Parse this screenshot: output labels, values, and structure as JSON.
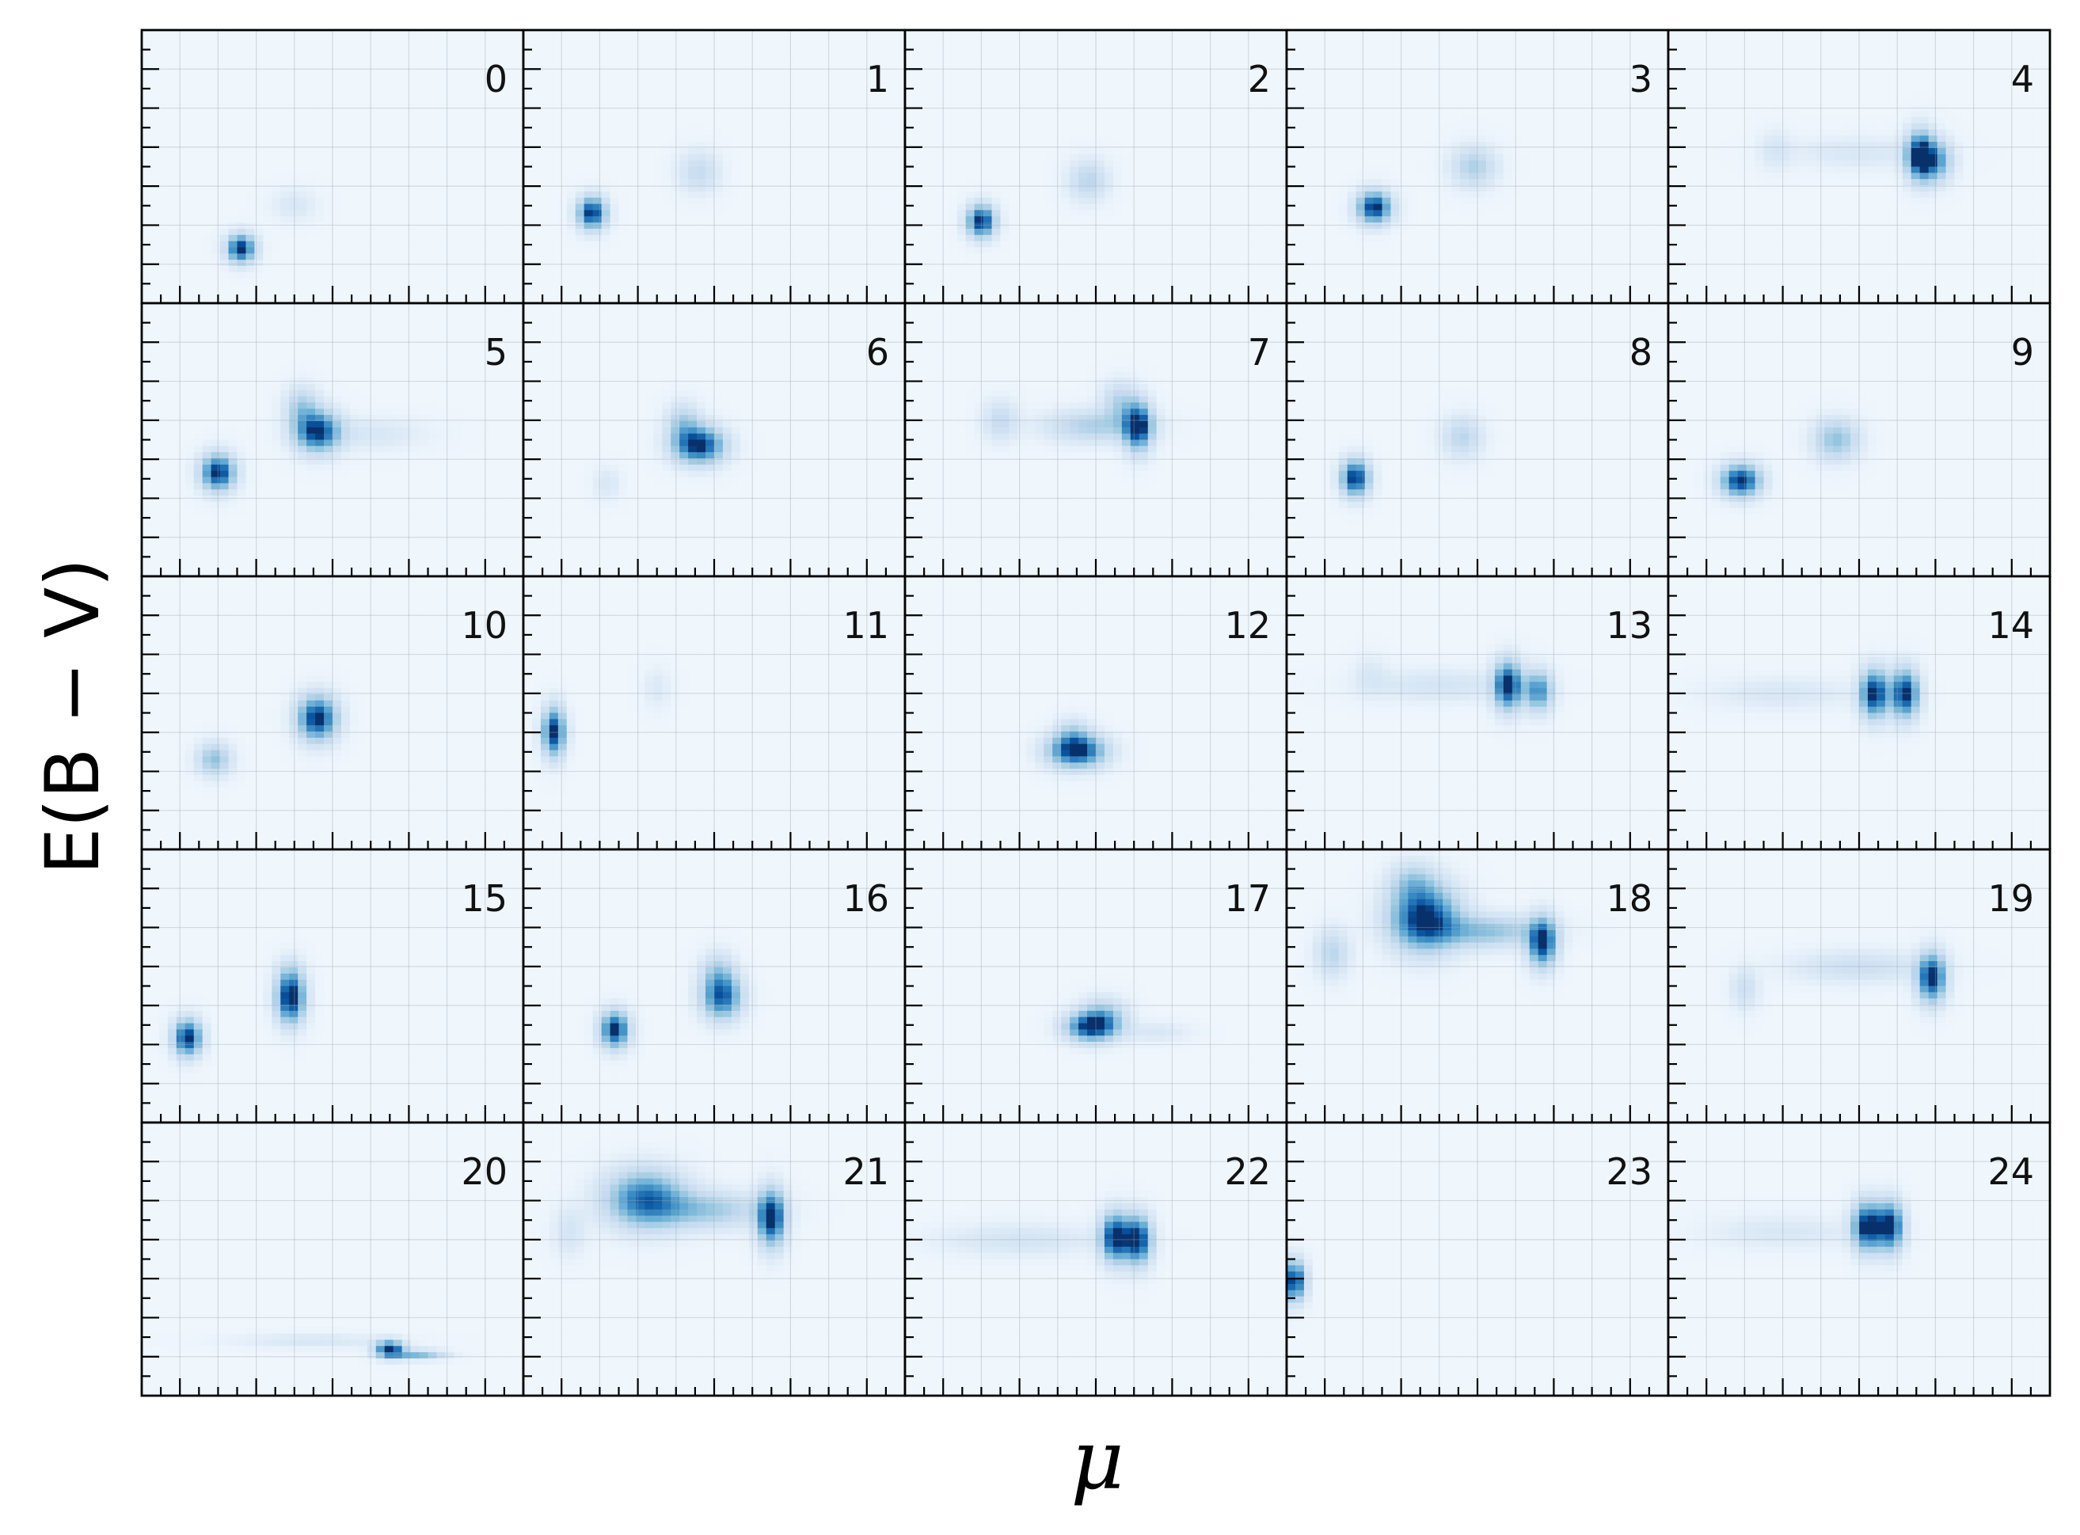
{
  "chart_data": {
    "type": "heatmap",
    "layout": "5x5 grid of panels",
    "xlabel": "μ",
    "ylabel": "E(B − V)",
    "colormap": "Blues",
    "grid": true,
    "panels": [
      {
        "label": "0",
        "blobs": [
          {
            "x": 0.26,
            "y": 0.2,
            "sx": 0.025,
            "sy": 0.035,
            "w": 1.0
          },
          {
            "x": 0.4,
            "y": 0.36,
            "sx": 0.04,
            "sy": 0.04,
            "w": 0.12
          }
        ]
      },
      {
        "label": "1",
        "blobs": [
          {
            "x": 0.18,
            "y": 0.33,
            "sx": 0.025,
            "sy": 0.04,
            "w": 1.0
          },
          {
            "x": 0.46,
            "y": 0.48,
            "sx": 0.035,
            "sy": 0.05,
            "w": 0.25
          }
        ]
      },
      {
        "label": "2",
        "blobs": [
          {
            "x": 0.2,
            "y": 0.3,
            "sx": 0.025,
            "sy": 0.04,
            "w": 1.0
          },
          {
            "x": 0.48,
            "y": 0.45,
            "sx": 0.035,
            "sy": 0.05,
            "w": 0.3
          }
        ]
      },
      {
        "label": "3",
        "blobs": [
          {
            "x": 0.23,
            "y": 0.35,
            "sx": 0.03,
            "sy": 0.04,
            "w": 1.0
          },
          {
            "x": 0.49,
            "y": 0.5,
            "sx": 0.04,
            "sy": 0.05,
            "w": 0.35
          }
        ]
      },
      {
        "label": "4",
        "blobs": [
          {
            "x": 0.66,
            "y": 0.54,
            "sx": 0.025,
            "sy": 0.06,
            "w": 1.0
          },
          {
            "x": 0.7,
            "y": 0.52,
            "sx": 0.03,
            "sy": 0.05,
            "w": 0.6
          },
          {
            "x": 0.5,
            "y": 0.55,
            "sx": 0.12,
            "sy": 0.04,
            "w": 0.12
          },
          {
            "x": 0.28,
            "y": 0.56,
            "sx": 0.03,
            "sy": 0.05,
            "w": 0.12
          }
        ]
      },
      {
        "label": "5",
        "blobs": [
          {
            "x": 0.2,
            "y": 0.38,
            "sx": 0.03,
            "sy": 0.045,
            "w": 1.0
          },
          {
            "x": 0.46,
            "y": 0.53,
            "sx": 0.04,
            "sy": 0.05,
            "w": 0.95
          },
          {
            "x": 0.42,
            "y": 0.62,
            "sx": 0.03,
            "sy": 0.05,
            "w": 0.35
          },
          {
            "x": 0.6,
            "y": 0.52,
            "sx": 0.1,
            "sy": 0.04,
            "w": 0.12
          }
        ]
      },
      {
        "label": "6",
        "blobs": [
          {
            "x": 0.46,
            "y": 0.48,
            "sx": 0.045,
            "sy": 0.045,
            "w": 1.0
          },
          {
            "x": 0.42,
            "y": 0.56,
            "sx": 0.03,
            "sy": 0.05,
            "w": 0.35
          },
          {
            "x": 0.22,
            "y": 0.34,
            "sx": 0.025,
            "sy": 0.04,
            "w": 0.12
          }
        ]
      },
      {
        "label": "7",
        "blobs": [
          {
            "x": 0.61,
            "y": 0.55,
            "sx": 0.025,
            "sy": 0.06,
            "w": 1.0
          },
          {
            "x": 0.5,
            "y": 0.55,
            "sx": 0.09,
            "sy": 0.04,
            "w": 0.35
          },
          {
            "x": 0.25,
            "y": 0.57,
            "sx": 0.03,
            "sy": 0.05,
            "w": 0.25
          },
          {
            "x": 0.56,
            "y": 0.64,
            "sx": 0.03,
            "sy": 0.05,
            "w": 0.3
          }
        ]
      },
      {
        "label": "8",
        "blobs": [
          {
            "x": 0.18,
            "y": 0.36,
            "sx": 0.025,
            "sy": 0.045,
            "w": 1.0
          },
          {
            "x": 0.46,
            "y": 0.51,
            "sx": 0.035,
            "sy": 0.05,
            "w": 0.3
          }
        ]
      },
      {
        "label": "9",
        "blobs": [
          {
            "x": 0.19,
            "y": 0.35,
            "sx": 0.035,
            "sy": 0.04,
            "w": 1.0
          },
          {
            "x": 0.44,
            "y": 0.5,
            "sx": 0.04,
            "sy": 0.05,
            "w": 0.45
          }
        ]
      },
      {
        "label": "10",
        "blobs": [
          {
            "x": 0.46,
            "y": 0.48,
            "sx": 0.035,
            "sy": 0.055,
            "w": 1.0
          },
          {
            "x": 0.19,
            "y": 0.33,
            "sx": 0.03,
            "sy": 0.04,
            "w": 0.45
          }
        ]
      },
      {
        "label": "11",
        "blobs": [
          {
            "x": 0.08,
            "y": 0.43,
            "sx": 0.02,
            "sy": 0.06,
            "w": 1.0
          },
          {
            "x": 0.35,
            "y": 0.59,
            "sx": 0.025,
            "sy": 0.05,
            "w": 0.1
          }
        ]
      },
      {
        "label": "12",
        "blobs": [
          {
            "x": 0.45,
            "y": 0.36,
            "sx": 0.05,
            "sy": 0.04,
            "w": 1.0
          },
          {
            "x": 0.44,
            "y": 0.42,
            "sx": 0.03,
            "sy": 0.04,
            "w": 0.3
          }
        ]
      },
      {
        "label": "13",
        "blobs": [
          {
            "x": 0.58,
            "y": 0.6,
            "sx": 0.025,
            "sy": 0.06,
            "w": 1.0
          },
          {
            "x": 0.66,
            "y": 0.58,
            "sx": 0.025,
            "sy": 0.05,
            "w": 0.7
          },
          {
            "x": 0.4,
            "y": 0.6,
            "sx": 0.13,
            "sy": 0.04,
            "w": 0.15
          },
          {
            "x": 0.22,
            "y": 0.64,
            "sx": 0.03,
            "sy": 0.05,
            "w": 0.1
          }
        ]
      },
      {
        "label": "14",
        "blobs": [
          {
            "x": 0.54,
            "y": 0.57,
            "sx": 0.025,
            "sy": 0.06,
            "w": 1.0
          },
          {
            "x": 0.62,
            "y": 0.57,
            "sx": 0.025,
            "sy": 0.06,
            "w": 1.0
          },
          {
            "x": 0.3,
            "y": 0.57,
            "sx": 0.13,
            "sy": 0.04,
            "w": 0.12
          }
        ]
      },
      {
        "label": "15",
        "blobs": [
          {
            "x": 0.12,
            "y": 0.31,
            "sx": 0.025,
            "sy": 0.045,
            "w": 1.0
          },
          {
            "x": 0.39,
            "y": 0.45,
            "sx": 0.025,
            "sy": 0.06,
            "w": 1.0
          },
          {
            "x": 0.39,
            "y": 0.53,
            "sx": 0.025,
            "sy": 0.05,
            "w": 0.25
          }
        ]
      },
      {
        "label": "16",
        "blobs": [
          {
            "x": 0.24,
            "y": 0.34,
            "sx": 0.025,
            "sy": 0.045,
            "w": 1.0
          },
          {
            "x": 0.52,
            "y": 0.46,
            "sx": 0.035,
            "sy": 0.055,
            "w": 0.85
          },
          {
            "x": 0.51,
            "y": 0.55,
            "sx": 0.03,
            "sy": 0.05,
            "w": 0.3
          }
        ]
      },
      {
        "label": "17",
        "blobs": [
          {
            "x": 0.49,
            "y": 0.35,
            "sx": 0.045,
            "sy": 0.035,
            "w": 1.0
          },
          {
            "x": 0.52,
            "y": 0.4,
            "sx": 0.04,
            "sy": 0.04,
            "w": 0.35
          },
          {
            "x": 0.66,
            "y": 0.33,
            "sx": 0.06,
            "sy": 0.025,
            "w": 0.12
          }
        ]
      },
      {
        "label": "18",
        "blobs": [
          {
            "x": 0.36,
            "y": 0.75,
            "sx": 0.06,
            "sy": 0.08,
            "w": 1.0
          },
          {
            "x": 0.67,
            "y": 0.66,
            "sx": 0.025,
            "sy": 0.06,
            "w": 1.0
          },
          {
            "x": 0.52,
            "y": 0.7,
            "sx": 0.1,
            "sy": 0.04,
            "w": 0.45
          },
          {
            "x": 0.12,
            "y": 0.62,
            "sx": 0.03,
            "sy": 0.06,
            "w": 0.3
          },
          {
            "x": 0.33,
            "y": 0.88,
            "sx": 0.04,
            "sy": 0.05,
            "w": 0.3
          }
        ]
      },
      {
        "label": "19",
        "blobs": [
          {
            "x": 0.69,
            "y": 0.53,
            "sx": 0.025,
            "sy": 0.06,
            "w": 1.0
          },
          {
            "x": 0.5,
            "y": 0.57,
            "sx": 0.12,
            "sy": 0.04,
            "w": 0.2
          },
          {
            "x": 0.2,
            "y": 0.49,
            "sx": 0.025,
            "sy": 0.05,
            "w": 0.2
          }
        ]
      },
      {
        "label": "20",
        "blobs": [
          {
            "x": 0.65,
            "y": 0.17,
            "sx": 0.025,
            "sy": 0.02,
            "w": 1.0
          },
          {
            "x": 0.72,
            "y": 0.15,
            "sx": 0.05,
            "sy": 0.012,
            "w": 0.5
          },
          {
            "x": 0.45,
            "y": 0.2,
            "sx": 0.14,
            "sy": 0.018,
            "w": 0.12
          }
        ]
      },
      {
        "label": "21",
        "blobs": [
          {
            "x": 0.32,
            "y": 0.72,
            "sx": 0.07,
            "sy": 0.07,
            "w": 0.8
          },
          {
            "x": 0.65,
            "y": 0.65,
            "sx": 0.025,
            "sy": 0.07,
            "w": 1.0
          },
          {
            "x": 0.48,
            "y": 0.68,
            "sx": 0.1,
            "sy": 0.045,
            "w": 0.4
          },
          {
            "x": 0.12,
            "y": 0.6,
            "sx": 0.03,
            "sy": 0.06,
            "w": 0.15
          }
        ]
      },
      {
        "label": "22",
        "blobs": [
          {
            "x": 0.55,
            "y": 0.58,
            "sx": 0.025,
            "sy": 0.06,
            "w": 1.0
          },
          {
            "x": 0.61,
            "y": 0.57,
            "sx": 0.025,
            "sy": 0.06,
            "w": 1.0
          },
          {
            "x": 0.3,
            "y": 0.57,
            "sx": 0.14,
            "sy": 0.04,
            "w": 0.15
          }
        ]
      },
      {
        "label": "23",
        "blobs": [
          {
            "x": 0.02,
            "y": 0.42,
            "sx": 0.02,
            "sy": 0.05,
            "w": 1.0
          }
        ]
      },
      {
        "label": "24",
        "blobs": [
          {
            "x": 0.52,
            "y": 0.62,
            "sx": 0.025,
            "sy": 0.06,
            "w": 1.0
          },
          {
            "x": 0.58,
            "y": 0.62,
            "sx": 0.025,
            "sy": 0.06,
            "w": 1.0
          },
          {
            "x": 0.3,
            "y": 0.6,
            "sx": 0.13,
            "sy": 0.04,
            "w": 0.12
          }
        ]
      }
    ]
  }
}
